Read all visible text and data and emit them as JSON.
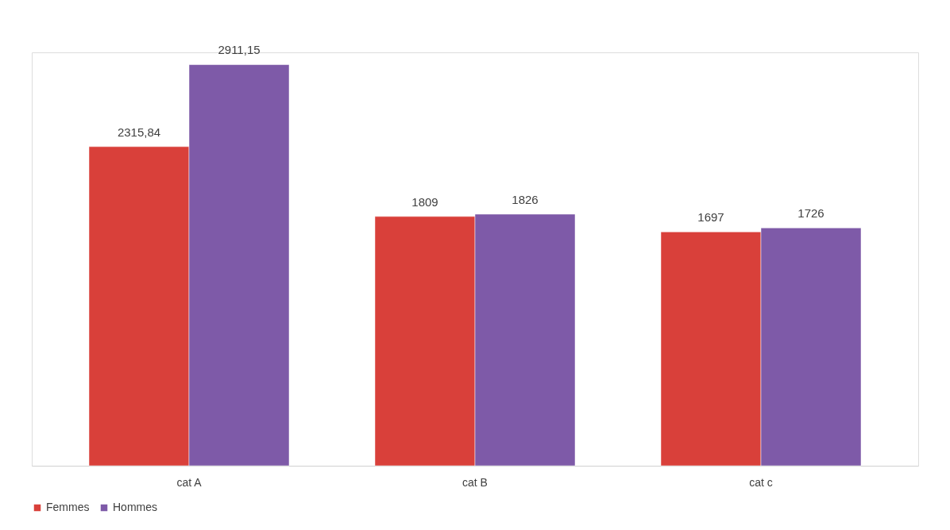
{
  "chart_data": {
    "type": "bar",
    "categories": [
      "cat A",
      "cat B",
      "cat c"
    ],
    "series": [
      {
        "name": "Femmes",
        "color": "#d9403a",
        "values": [
          2315.84,
          1809,
          1697
        ],
        "value_labels": [
          "2315,84",
          "1809",
          "1697"
        ]
      },
      {
        "name": "Hommes",
        "color": "#7e5aa8",
        "values": [
          2911.15,
          1826,
          1726
        ],
        "value_labels": [
          "2911,15",
          "1826",
          "1726"
        ]
      }
    ],
    "grid": false,
    "legend": "bottom",
    "tick_labels": "x"
  }
}
